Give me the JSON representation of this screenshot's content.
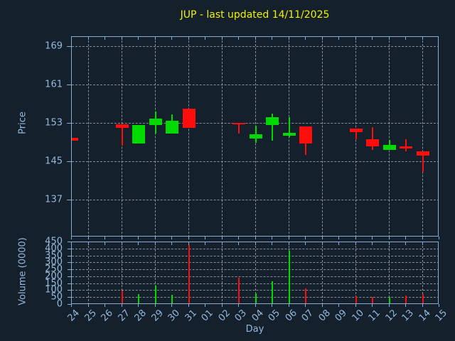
{
  "title": "JUP - last updated 14/11/2025",
  "labels": {
    "price_axis": "Price",
    "volume_axis": "Volume (0000)",
    "x_axis": "Day"
  },
  "colors": {
    "background": "#15202d",
    "frame": "#85abd0",
    "tick_label": "#93b8da",
    "title": "#f0f000",
    "grid": "rgba(208,214,220,0.6)",
    "up": "#00da00",
    "down": "#ff0d0d"
  },
  "chart_data": [
    {
      "type": "candlestick",
      "title": "JUP - last updated 14/11/2025",
      "xlabel": "Day",
      "ylabel": "Price",
      "x_categories": [
        "24",
        "25",
        "26",
        "27",
        "28",
        "29",
        "30",
        "31",
        "01",
        "02",
        "03",
        "04",
        "05",
        "06",
        "07",
        "08",
        "09",
        "10",
        "11",
        "12",
        "13",
        "14",
        "15"
      ],
      "yticks": [
        169,
        161,
        153,
        145,
        137
      ],
      "ylim": [
        129.3,
        171.1
      ],
      "grid": true,
      "legend": "none",
      "candles": [
        {
          "day": "24",
          "open": 150.0,
          "high": 150.0,
          "low": 149.5,
          "close": 149.5,
          "direction": "down"
        },
        {
          "day": "27",
          "open": 152.9,
          "high": 152.9,
          "low": 148.4,
          "close": 152.2,
          "direction": "down"
        },
        {
          "day": "28",
          "open": 148.8,
          "high": 152.7,
          "low": 148.8,
          "close": 152.7,
          "direction": "up"
        },
        {
          "day": "29",
          "open": 152.7,
          "high": 155.5,
          "low": 151.0,
          "close": 154.1,
          "direction": "up"
        },
        {
          "day": "30",
          "open": 151.0,
          "high": 155.0,
          "low": 151.0,
          "close": 153.6,
          "direction": "up"
        },
        {
          "day": "31",
          "open": 156.2,
          "high": 156.2,
          "low": 152.2,
          "close": 152.2,
          "direction": "down"
        },
        {
          "day": "03",
          "open": 153.2,
          "high": 153.2,
          "low": 151.0,
          "close": 152.8,
          "direction": "down"
        },
        {
          "day": "04",
          "open": 149.9,
          "high": 152.6,
          "low": 149.0,
          "close": 150.8,
          "direction": "up"
        },
        {
          "day": "05",
          "open": 152.7,
          "high": 155.1,
          "low": 149.4,
          "close": 154.3,
          "direction": "up"
        },
        {
          "day": "06",
          "open": 150.5,
          "high": 154.3,
          "low": 150.2,
          "close": 151.1,
          "direction": "up"
        },
        {
          "day": "07",
          "open": 152.4,
          "high": 152.4,
          "low": 146.5,
          "close": 148.9,
          "direction": "down"
        },
        {
          "day": "10",
          "open": 152.0,
          "high": 152.0,
          "low": 149.8,
          "close": 151.2,
          "direction": "down"
        },
        {
          "day": "11",
          "open": 149.8,
          "high": 152.3,
          "low": 147.6,
          "close": 148.3,
          "direction": "down"
        },
        {
          "day": "12",
          "open": 147.5,
          "high": 149.6,
          "low": 147.5,
          "close": 148.5,
          "direction": "up"
        },
        {
          "day": "13",
          "open": 148.3,
          "high": 149.7,
          "low": 147.2,
          "close": 147.8,
          "direction": "down"
        },
        {
          "day": "14",
          "open": 147.3,
          "high": 147.3,
          "low": 143.0,
          "close": 146.4,
          "direction": "down"
        }
      ]
    },
    {
      "type": "bar",
      "ylabel": "Volume (0000)",
      "xlabel": "Day",
      "yticks": [
        450,
        400,
        350,
        300,
        250,
        200,
        150,
        100,
        50,
        0
      ],
      "ylim": [
        0,
        450
      ],
      "grid": true,
      "bars": [
        {
          "day": "24",
          "value": 0,
          "direction": "down"
        },
        {
          "day": "27",
          "value": 100,
          "direction": "down"
        },
        {
          "day": "28",
          "value": 75,
          "direction": "up"
        },
        {
          "day": "29",
          "value": 140,
          "direction": "up"
        },
        {
          "day": "30",
          "value": 70,
          "direction": "up"
        },
        {
          "day": "31",
          "value": 430,
          "direction": "down"
        },
        {
          "day": "03",
          "value": 195,
          "direction": "down"
        },
        {
          "day": "04",
          "value": 80,
          "direction": "up"
        },
        {
          "day": "05",
          "value": 170,
          "direction": "up"
        },
        {
          "day": "06",
          "value": 390,
          "direction": "up"
        },
        {
          "day": "07",
          "value": 120,
          "direction": "down"
        },
        {
          "day": "10",
          "value": 60,
          "direction": "down"
        },
        {
          "day": "11",
          "value": 55,
          "direction": "down"
        },
        {
          "day": "12",
          "value": 55,
          "direction": "up"
        },
        {
          "day": "13",
          "value": 65,
          "direction": "down"
        },
        {
          "day": "14",
          "value": 75,
          "direction": "down"
        }
      ]
    }
  ]
}
